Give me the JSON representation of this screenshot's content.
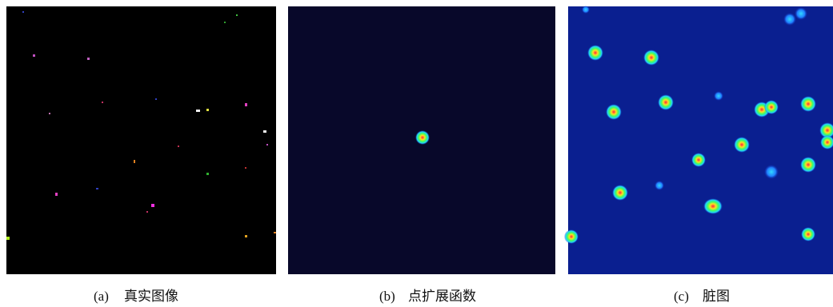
{
  "panels": [
    {
      "label": "(a)",
      "text": "真实图像"
    },
    {
      "label": "(b)",
      "text": "点扩展函数"
    },
    {
      "label": "(c)",
      "text": "脏图"
    }
  ]
}
